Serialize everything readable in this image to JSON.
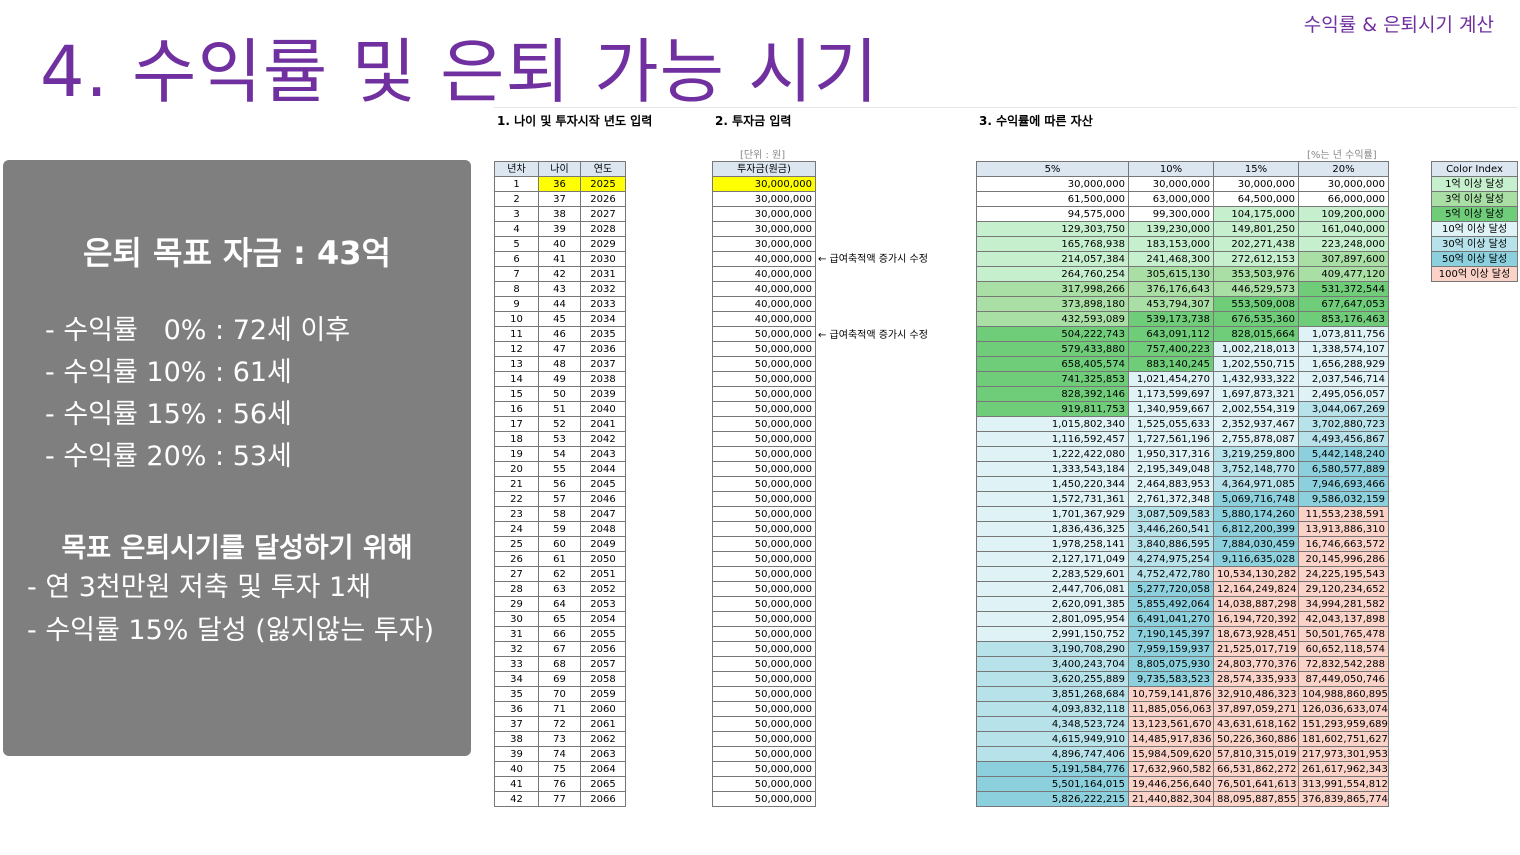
{
  "header": {
    "corner_label": "수익률 & 은퇴시기 계산",
    "title": "4. 수익률 및 은퇴 가능 시기"
  },
  "panel": {
    "goal_title": "은퇴 목표 자금 : 43억",
    "rates": [
      "- 수익률   0% : 72세 이후",
      "- 수익률 10% : 61세",
      "- 수익률 15% : 56세",
      "- 수익률 20% : 53세"
    ],
    "goal_heading": "목표 은퇴시기를 달성하기 위해",
    "goal_items": [
      "- 연 3천만원 저축 및 투자 1채",
      "- 수익률 15% 달성 (잃지않는 투자)"
    ]
  },
  "sheet": {
    "sections": [
      "1. 나이 및 투자시작 년도 입력",
      "2. 투자금 입력",
      "3. 수익률에 따른 자산"
    ],
    "unit_label": "[단위 : 원]",
    "rate_note": "[%는 년 수익률]",
    "left_headers": [
      "년차",
      "나이",
      "연도"
    ],
    "amount_header": "투자금(원금)",
    "return_headers": [
      "5%",
      "10%",
      "15%",
      "20%"
    ],
    "annotations": [
      {
        "row": 6,
        "text": "← 급여축적액 증가시 수정"
      },
      {
        "row": 11,
        "text": "← 급여축적액 증가시 수정"
      }
    ],
    "color_index": {
      "header": "Color Index",
      "items": [
        {
          "label": "1억 이상 달성",
          "color": "#c6efce"
        },
        {
          "label": "3억 이상 달성",
          "color": "#a9dfa5"
        },
        {
          "label": "5억 이상 달성",
          "color": "#6fcd7a"
        },
        {
          "label": "10억 이상 달성",
          "color": "#dff2f6"
        },
        {
          "label": "30억 이상 달성",
          "color": "#b7e2ea"
        },
        {
          "label": "50억 이상 달성",
          "color": "#8bd0dc"
        },
        {
          "label": "100억 이상 달성",
          "color": "#fbd2c8"
        }
      ]
    },
    "rows": [
      [
        "1",
        "36",
        "2025",
        "30,000,000",
        "30,000,000",
        "30,000,000",
        "30,000,000",
        "30,000,000"
      ],
      [
        "2",
        "37",
        "2026",
        "30,000,000",
        "61,500,000",
        "63,000,000",
        "64,500,000",
        "66,000,000"
      ],
      [
        "3",
        "38",
        "2027",
        "30,000,000",
        "94,575,000",
        "99,300,000",
        "104,175,000",
        "109,200,000"
      ],
      [
        "4",
        "39",
        "2028",
        "30,000,000",
        "129,303,750",
        "139,230,000",
        "149,801,250",
        "161,040,000"
      ],
      [
        "5",
        "40",
        "2029",
        "30,000,000",
        "165,768,938",
        "183,153,000",
        "202,271,438",
        "223,248,000"
      ],
      [
        "6",
        "41",
        "2030",
        "40,000,000",
        "214,057,384",
        "241,468,300",
        "272,612,153",
        "307,897,600"
      ],
      [
        "7",
        "42",
        "2031",
        "40,000,000",
        "264,760,254",
        "305,615,130",
        "353,503,976",
        "409,477,120"
      ],
      [
        "8",
        "43",
        "2032",
        "40,000,000",
        "317,998,266",
        "376,176,643",
        "446,529,573",
        "531,372,544"
      ],
      [
        "9",
        "44",
        "2033",
        "40,000,000",
        "373,898,180",
        "453,794,307",
        "553,509,008",
        "677,647,053"
      ],
      [
        "10",
        "45",
        "2034",
        "40,000,000",
        "432,593,089",
        "539,173,738",
        "676,535,360",
        "853,176,463"
      ],
      [
        "11",
        "46",
        "2035",
        "50,000,000",
        "504,222,743",
        "643,091,112",
        "828,015,664",
        "1,073,811,756"
      ],
      [
        "12",
        "47",
        "2036",
        "50,000,000",
        "579,433,880",
        "757,400,223",
        "1,002,218,013",
        "1,338,574,107"
      ],
      [
        "13",
        "48",
        "2037",
        "50,000,000",
        "658,405,574",
        "883,140,245",
        "1,202,550,715",
        "1,656,288,929"
      ],
      [
        "14",
        "49",
        "2038",
        "50,000,000",
        "741,325,853",
        "1,021,454,270",
        "1,432,933,322",
        "2,037,546,714"
      ],
      [
        "15",
        "50",
        "2039",
        "50,000,000",
        "828,392,146",
        "1,173,599,697",
        "1,697,873,321",
        "2,495,056,057"
      ],
      [
        "16",
        "51",
        "2040",
        "50,000,000",
        "919,811,753",
        "1,340,959,667",
        "2,002,554,319",
        "3,044,067,269"
      ],
      [
        "17",
        "52",
        "2041",
        "50,000,000",
        "1,015,802,340",
        "1,525,055,633",
        "2,352,937,467",
        "3,702,880,723"
      ],
      [
        "18",
        "53",
        "2042",
        "50,000,000",
        "1,116,592,457",
        "1,727,561,196",
        "2,755,878,087",
        "4,493,456,867"
      ],
      [
        "19",
        "54",
        "2043",
        "50,000,000",
        "1,222,422,080",
        "1,950,317,316",
        "3,219,259,800",
        "5,442,148,240"
      ],
      [
        "20",
        "55",
        "2044",
        "50,000,000",
        "1,333,543,184",
        "2,195,349,048",
        "3,752,148,770",
        "6,580,577,889"
      ],
      [
        "21",
        "56",
        "2045",
        "50,000,000",
        "1,450,220,344",
        "2,464,883,953",
        "4,364,971,085",
        "7,946,693,466"
      ],
      [
        "22",
        "57",
        "2046",
        "50,000,000",
        "1,572,731,361",
        "2,761,372,348",
        "5,069,716,748",
        "9,586,032,159"
      ],
      [
        "23",
        "58",
        "2047",
        "50,000,000",
        "1,701,367,929",
        "3,087,509,583",
        "5,880,174,260",
        "11,553,238,591"
      ],
      [
        "24",
        "59",
        "2048",
        "50,000,000",
        "1,836,436,325",
        "3,446,260,541",
        "6,812,200,399",
        "13,913,886,310"
      ],
      [
        "25",
        "60",
        "2049",
        "50,000,000",
        "1,978,258,141",
        "3,840,886,595",
        "7,884,030,459",
        "16,746,663,572"
      ],
      [
        "26",
        "61",
        "2050",
        "50,000,000",
        "2,127,171,049",
        "4,274,975,254",
        "9,116,635,028",
        "20,145,996,286"
      ],
      [
        "27",
        "62",
        "2051",
        "50,000,000",
        "2,283,529,601",
        "4,752,472,780",
        "10,534,130,282",
        "24,225,195,543"
      ],
      [
        "28",
        "63",
        "2052",
        "50,000,000",
        "2,447,706,081",
        "5,277,720,058",
        "12,164,249,824",
        "29,120,234,652"
      ],
      [
        "29",
        "64",
        "2053",
        "50,000,000",
        "2,620,091,385",
        "5,855,492,064",
        "14,038,887,298",
        "34,994,281,582"
      ],
      [
        "30",
        "65",
        "2054",
        "50,000,000",
        "2,801,095,954",
        "6,491,041,270",
        "16,194,720,392",
        "42,043,137,898"
      ],
      [
        "31",
        "66",
        "2055",
        "50,000,000",
        "2,991,150,752",
        "7,190,145,397",
        "18,673,928,451",
        "50,501,765,478"
      ],
      [
        "32",
        "67",
        "2056",
        "50,000,000",
        "3,190,708,290",
        "7,959,159,937",
        "21,525,017,719",
        "60,652,118,574"
      ],
      [
        "33",
        "68",
        "2057",
        "50,000,000",
        "3,400,243,704",
        "8,805,075,930",
        "24,803,770,376",
        "72,832,542,288"
      ],
      [
        "34",
        "69",
        "2058",
        "50,000,000",
        "3,620,255,889",
        "9,735,583,523",
        "28,574,335,933",
        "87,449,050,746"
      ],
      [
        "35",
        "70",
        "2059",
        "50,000,000",
        "3,851,268,684",
        "10,759,141,876",
        "32,910,486,323",
        "104,988,860,895"
      ],
      [
        "36",
        "71",
        "2060",
        "50,000,000",
        "4,093,832,118",
        "11,885,056,063",
        "37,897,059,271",
        "126,036,633,074"
      ],
      [
        "37",
        "72",
        "2061",
        "50,000,000",
        "4,348,523,724",
        "13,123,561,670",
        "43,631,618,162",
        "151,293,959,689"
      ],
      [
        "38",
        "73",
        "2062",
        "50,000,000",
        "4,615,949,910",
        "14,485,917,836",
        "50,226,360,886",
        "181,602,751,627"
      ],
      [
        "39",
        "74",
        "2063",
        "50,000,000",
        "4,896,747,406",
        "15,984,509,620",
        "57,810,315,019",
        "217,973,301,953"
      ],
      [
        "40",
        "75",
        "2064",
        "50,000,000",
        "5,191,584,776",
        "17,632,960,582",
        "66,531,862,272",
        "261,617,962,343"
      ],
      [
        "41",
        "76",
        "2065",
        "50,000,000",
        "5,501,164,015",
        "19,446,256,640",
        "76,501,641,613",
        "313,991,554,812"
      ],
      [
        "42",
        "77",
        "2066",
        "50,000,000",
        "5,826,222,215",
        "21,440,882,304",
        "88,095,887,855",
        "376,839,865,774"
      ]
    ]
  }
}
